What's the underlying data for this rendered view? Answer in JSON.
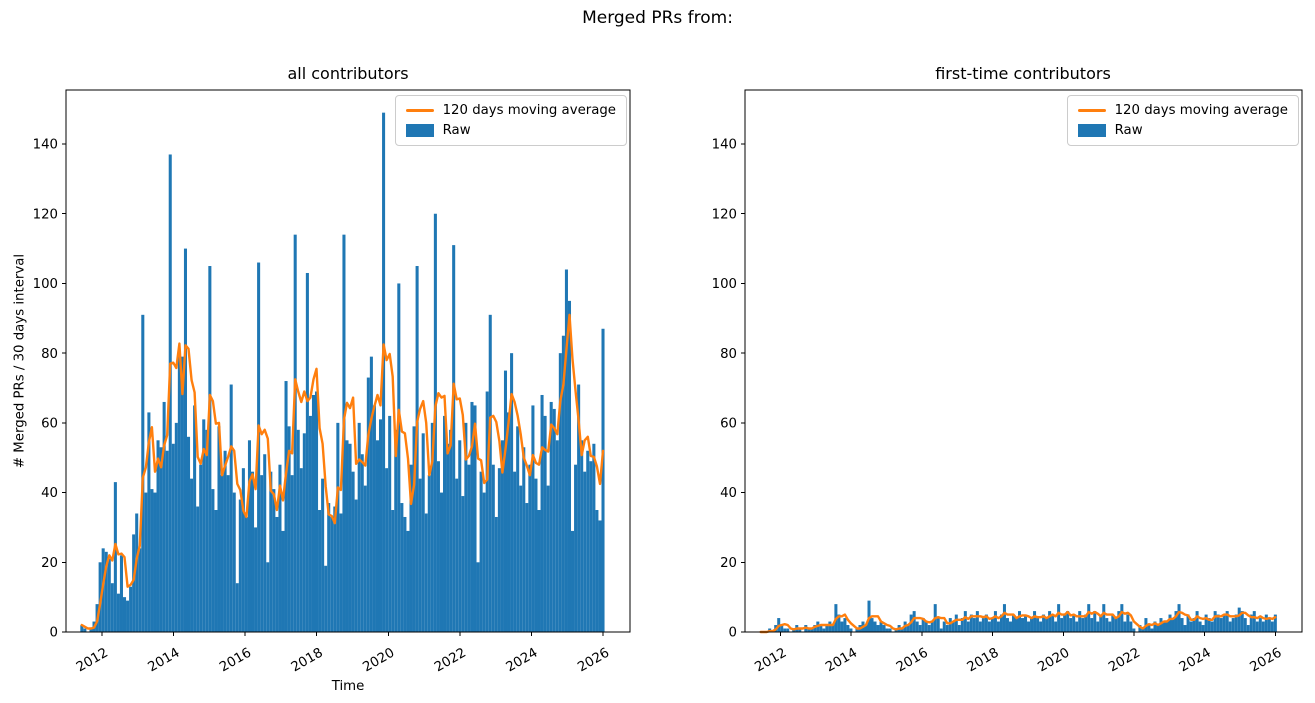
{
  "figure": {
    "title": "Merged PRs from:",
    "background": "#ffffff"
  },
  "colors": {
    "raw": "#1f77b4",
    "moving_average": "#ff7f0e",
    "axis": "#000000"
  },
  "chart_data": [
    {
      "type": "bar",
      "title": "all contributors",
      "xlabel": "Time",
      "ylabel": "# Merged PRs / 30 days interval",
      "legend": [
        "120 days moving average",
        "Raw"
      ],
      "legend_position": "upper right",
      "grid": false,
      "xlim": [
        2011.0,
        2026.75
      ],
      "ylim": [
        0,
        155.5
      ],
      "xticks": [
        2012,
        2014,
        2016,
        2018,
        2020,
        2022,
        2024,
        2026
      ],
      "yticks": [
        0,
        20,
        40,
        60,
        80,
        100,
        120,
        140
      ],
      "bar_start_year": 2011.4,
      "bar_interval_years": 0.08511,
      "moving_average_window_bars": 4,
      "raw": [
        2,
        1,
        0,
        1,
        3,
        8,
        20,
        24,
        23,
        21,
        14,
        43,
        11,
        22,
        10,
        9,
        13,
        28,
        34,
        24,
        91,
        40,
        63,
        41,
        40,
        55,
        53,
        66,
        52,
        137,
        54,
        60,
        80,
        79,
        110,
        56,
        44,
        65,
        36,
        48,
        61,
        58,
        105,
        41,
        35,
        59,
        45,
        52,
        45,
        71,
        40,
        14,
        38,
        47,
        33,
        55,
        46,
        30,
        106,
        45,
        51,
        20,
        46,
        41,
        33,
        48,
        29,
        72,
        59,
        45,
        114,
        58,
        47,
        57,
        103,
        62,
        68,
        69,
        35,
        44,
        19,
        37,
        33,
        36,
        60,
        34,
        114,
        55,
        54,
        46,
        38,
        60,
        51,
        42,
        73,
        79,
        65,
        55,
        61,
        149,
        47,
        62,
        35,
        58,
        100,
        37,
        33,
        29,
        48,
        59,
        105,
        44,
        57,
        34,
        45,
        60,
        120,
        49,
        40,
        62,
        54,
        58,
        111,
        44,
        55,
        39,
        60,
        48,
        66,
        65,
        20,
        46,
        40,
        69,
        91,
        48,
        33,
        47,
        55,
        75,
        63,
        80,
        46,
        59,
        42,
        53,
        37,
        48,
        65,
        44,
        35,
        68,
        62,
        42,
        66,
        64,
        55,
        80,
        85,
        104,
        95,
        29,
        48,
        71,
        55,
        46,
        52,
        49,
        54,
        35,
        32,
        87
      ]
    },
    {
      "type": "bar",
      "title": "first-time contributors",
      "xlabel": "",
      "ylabel": "",
      "legend": [
        "120 days moving average",
        "Raw"
      ],
      "legend_position": "upper right",
      "grid": false,
      "xlim": [
        2011.0,
        2026.75
      ],
      "ylim": [
        0,
        155.5
      ],
      "xticks": [
        2012,
        2014,
        2016,
        2018,
        2020,
        2022,
        2024,
        2026
      ],
      "yticks": [
        0,
        20,
        40,
        60,
        80,
        100,
        120,
        140
      ],
      "bar_start_year": 2011.4,
      "bar_interval_years": 0.08511,
      "moving_average_window_bars": 4,
      "raw": [
        0,
        0,
        0,
        1,
        0,
        2,
        4,
        2,
        1,
        1,
        0,
        1,
        2,
        1,
        0,
        2,
        1,
        1,
        2,
        3,
        2,
        1,
        2,
        3,
        2,
        8,
        5,
        3,
        4,
        2,
        1,
        0,
        1,
        2,
        3,
        2,
        9,
        4,
        3,
        2,
        3,
        2,
        1,
        1,
        0,
        1,
        2,
        1,
        3,
        2,
        5,
        6,
        3,
        2,
        4,
        3,
        2,
        3,
        8,
        4,
        1,
        3,
        2,
        4,
        3,
        5,
        2,
        4,
        6,
        3,
        5,
        4,
        6,
        3,
        4,
        5,
        3,
        4,
        6,
        3,
        5,
        8,
        4,
        3,
        5,
        4,
        6,
        4,
        5,
        3,
        4,
        6,
        4,
        3,
        5,
        4,
        6,
        5,
        3,
        8,
        4,
        5,
        6,
        4,
        5,
        3,
        6,
        4,
        5,
        8,
        4,
        6,
        3,
        5,
        8,
        4,
        3,
        5,
        4,
        6,
        8,
        3,
        5,
        3,
        1,
        0,
        2,
        1,
        4,
        2,
        1,
        3,
        2,
        4,
        3,
        3,
        5,
        4,
        6,
        8,
        4,
        2,
        5,
        3,
        4,
        6,
        3,
        2,
        5,
        4,
        3,
        6,
        5,
        4,
        5,
        6,
        3,
        4,
        5,
        7,
        6,
        4,
        2,
        5,
        6,
        3,
        4,
        3,
        5,
        4,
        3,
        5
      ]
    }
  ]
}
